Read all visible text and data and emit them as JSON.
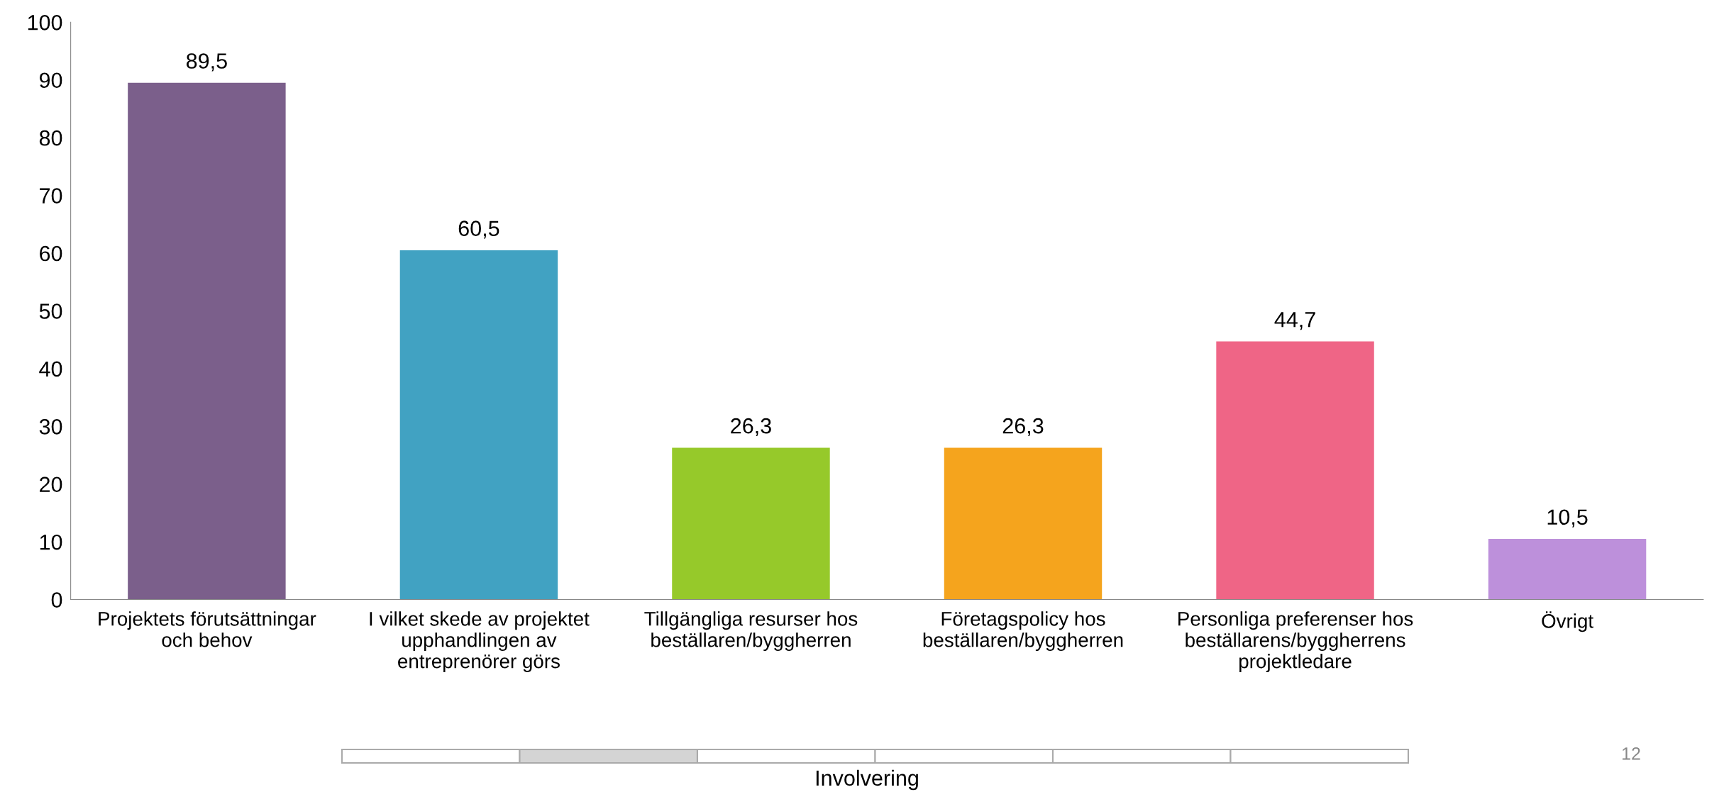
{
  "chart_data": {
    "type": "bar",
    "categories": [
      "Projektets förutsättningar\noch behov",
      "I vilket skede av projektet\nupphandlingen av\nentreprenörer görs",
      "Tillgängliga resurser hos\nbeställaren/byggherren",
      "Företagspolicy hos\nbeställaren/byggherren",
      "Personliga preferenser hos\nbeställarens/byggherrens\nprojektledare",
      "Övrigt"
    ],
    "values": [
      89.5,
      60.5,
      26.3,
      26.3,
      44.7,
      10.5
    ],
    "colors": [
      "#7b5f8b",
      "#41a2c2",
      "#96c92a",
      "#f5a41d",
      "#ef6586",
      "#bd90db"
    ],
    "value_labels": [
      "89,5",
      "60,5",
      "26,3",
      "26,3",
      "44,7",
      "10,5"
    ],
    "ylim": [
      0,
      100
    ],
    "yticks": [
      0,
      10,
      20,
      30,
      40,
      50,
      60,
      70,
      80,
      90,
      100
    ],
    "xlabel": "Involvering",
    "annotations": [
      "12"
    ],
    "grid": false,
    "legend": false
  }
}
